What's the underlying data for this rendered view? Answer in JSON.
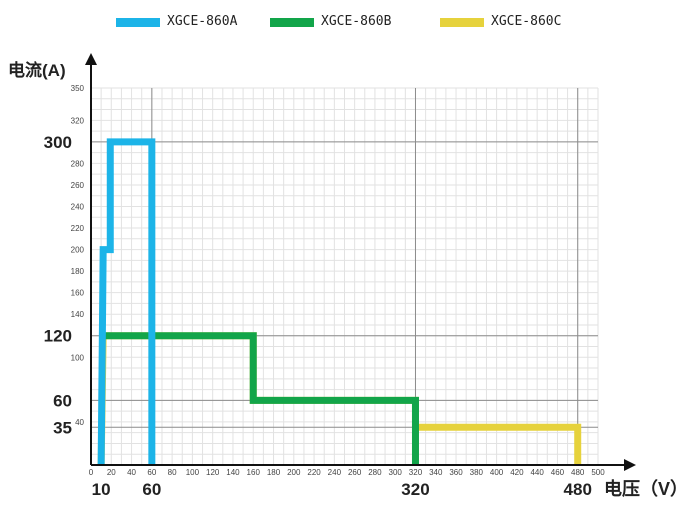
{
  "chart_data": {
    "type": "line",
    "title": "",
    "xlabel": "电压（V）",
    "ylabel": "电流(A)",
    "xlim": [
      0,
      500
    ],
    "ylim": [
      0,
      350
    ],
    "x_small_ticks": [
      0,
      20,
      40,
      60,
      80,
      100,
      120,
      140,
      160,
      180,
      200,
      220,
      240,
      260,
      280,
      300,
      320,
      340,
      360,
      380,
      400,
      420,
      440,
      460,
      480,
      500
    ],
    "x_small_tick_labels": [
      "0",
      "20",
      "40",
      "60",
      "80",
      "100",
      "120",
      "140",
      "160",
      "180",
      "200",
      "220",
      "240",
      "260",
      "280",
      "300",
      "320",
      "340",
      "360",
      "380",
      "400",
      "420",
      "440",
      "460",
      "480",
      "500"
    ],
    "x_major_ticks": [
      10,
      60,
      320,
      480
    ],
    "x_major_tick_labels": [
      "10",
      "60",
      "320",
      "480"
    ],
    "y_small_ticks": [
      40,
      100,
      140,
      160,
      180,
      200,
      220,
      240,
      260,
      280,
      320,
      350
    ],
    "y_small_tick_labels": [
      "40",
      "100",
      "140",
      "160",
      "180",
      "200",
      "220",
      "240",
      "260",
      "280",
      "320",
      "350"
    ],
    "y_major_ticks": [
      35,
      60,
      120,
      300
    ],
    "y_major_tick_labels": [
      "35",
      "60",
      "120",
      "300"
    ],
    "grid": true,
    "legend_position": "top",
    "series": [
      {
        "name": "XGCE-860A",
        "color": "#1cb4e8",
        "x": [
          10,
          12,
          19,
          19,
          60,
          60
        ],
        "y": [
          0,
          200,
          200,
          300,
          300,
          0
        ]
      },
      {
        "name": "XGCE-860B",
        "color": "#12a54a",
        "x": [
          10,
          160,
          160,
          320,
          320
        ],
        "y": [
          120,
          120,
          60,
          60,
          0
        ]
      },
      {
        "name": "XGCE-860C",
        "color": "#e6d23c",
        "x": [
          10,
          12,
          160,
          160,
          320,
          320,
          480,
          480
        ],
        "y": [
          0,
          120,
          120,
          60,
          60,
          35,
          35,
          0
        ]
      }
    ]
  }
}
